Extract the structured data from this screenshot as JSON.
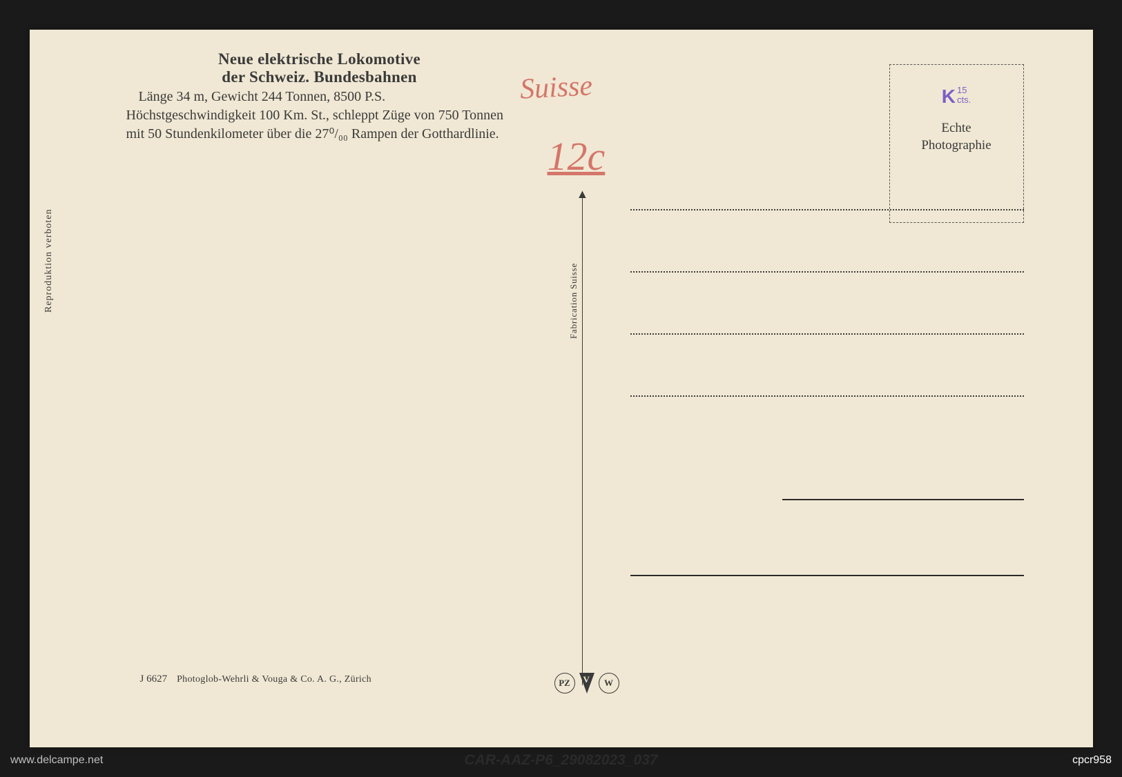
{
  "postcard": {
    "background_color": "#f0e8d4",
    "title_line1": "Neue elektrische Lokomotive",
    "title_line2": "der Schweiz. Bundesbahnen",
    "body_text": "Länge 34 m, Gewicht 244 Tonnen, 8500 P.S. Höchstgeschwindigkeit 100 Km. St., schleppt Züge von 750 Tonnen mit 50 Stundenkilometer über die 27⁰/₀₀ Rampen der Gotthardlinie.",
    "vertical_left": "Reproduktion verboten",
    "vertical_center": "Fabrication Suisse",
    "footer_id": "J 6627",
    "footer_publisher": "Photoglob-Wehrli & Vouga & Co. A. G., Zürich"
  },
  "stamp_box": {
    "k_letter": "K",
    "k_top": "15",
    "k_bottom": "cts.",
    "k_color": "#7a5fc8",
    "text_line1": "Echte",
    "text_line2": "Photographie"
  },
  "handwriting": {
    "suisse": "Suisse",
    "price": "12c",
    "color": "#d4766a"
  },
  "logos": {
    "left_circle": "PZ",
    "right_circle": "W"
  },
  "watermarks": {
    "left": "www.delcampe.net",
    "center": "CAR-AAZ-P6_29082023_037",
    "right": "cpcr958"
  },
  "styling": {
    "text_color": "#3a3a3a",
    "title_fontsize": 23,
    "body_fontsize": 20,
    "small_fontsize": 14
  }
}
